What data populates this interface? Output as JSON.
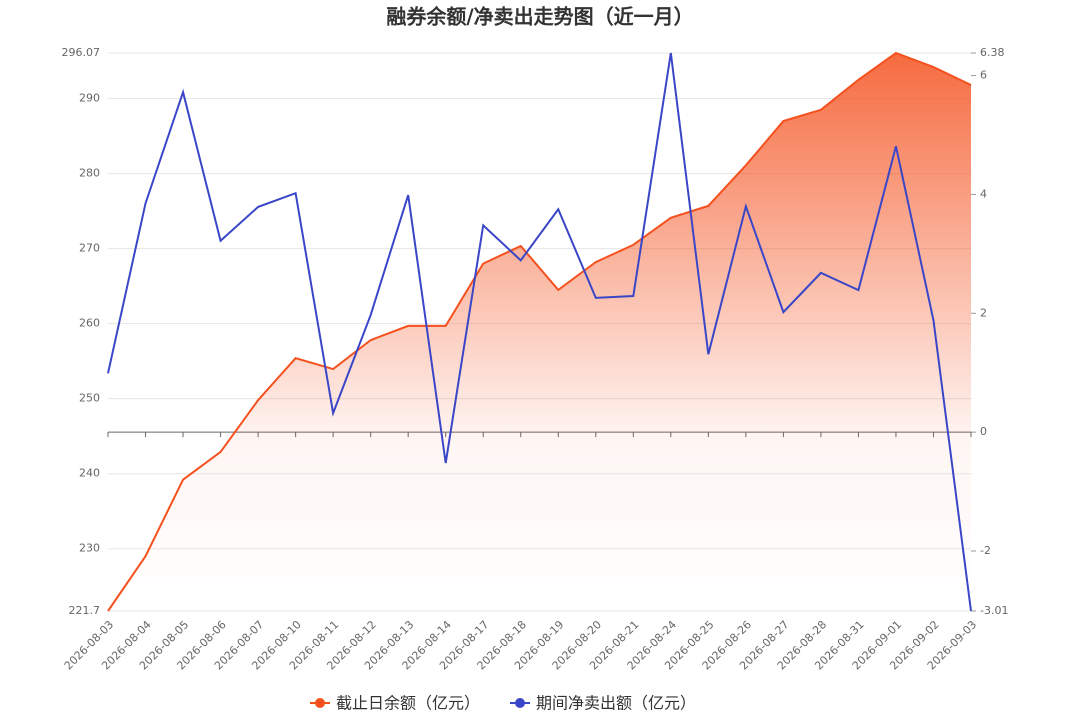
{
  "chart_data": {
    "type": "line",
    "title": "融券余额/净卖出走势图（近一月）",
    "categories": [
      "2026-08-03",
      "2026-08-04",
      "2026-08-05",
      "2026-08-06",
      "2026-08-07",
      "2026-08-10",
      "2026-08-11",
      "2026-08-12",
      "2026-08-13",
      "2026-08-14",
      "2026-08-17",
      "2026-08-18",
      "2026-08-19",
      "2026-08-20",
      "2026-08-21",
      "2026-08-24",
      "2026-08-25",
      "2026-08-26",
      "2026-08-27",
      "2026-08-28",
      "2026-08-31",
      "2026-09-01",
      "2026-09-02",
      "2026-09-03"
    ],
    "series": [
      {
        "name": "截止日余额（亿元）",
        "color": "#f4511e",
        "area": true,
        "values": [
          221.7,
          229.0,
          239.2,
          242.9,
          249.8,
          255.4,
          253.95,
          257.8,
          259.7,
          259.7,
          268.0,
          270.35,
          264.5,
          268.2,
          270.5,
          274.1,
          275.7,
          281.1,
          287.0,
          288.5,
          292.5,
          296.07,
          294.2,
          291.8
        ]
      },
      {
        "name": "期间净卖出额（亿元）",
        "color": "#3a46c8",
        "axis": "y2",
        "values": [
          0.99,
          3.85,
          5.72,
          3.22,
          3.79,
          4.02,
          0.32,
          1.97,
          3.99,
          -0.52,
          3.48,
          2.89,
          3.75,
          2.26,
          2.29,
          6.38,
          1.31,
          3.8,
          2.02,
          2.68,
          2.39,
          4.81,
          1.88,
          -3.01
        ]
      }
    ],
    "ylim": [
      221.7,
      296.07
    ],
    "yticks": [
      221.7,
      230,
      240,
      250,
      260,
      270,
      280,
      290,
      296.07
    ],
    "y2lim": [
      -3.01,
      6.38
    ],
    "y2ticks": [
      -3.01,
      -2,
      0,
      2,
      4,
      6,
      6.38
    ],
    "grid": true
  }
}
